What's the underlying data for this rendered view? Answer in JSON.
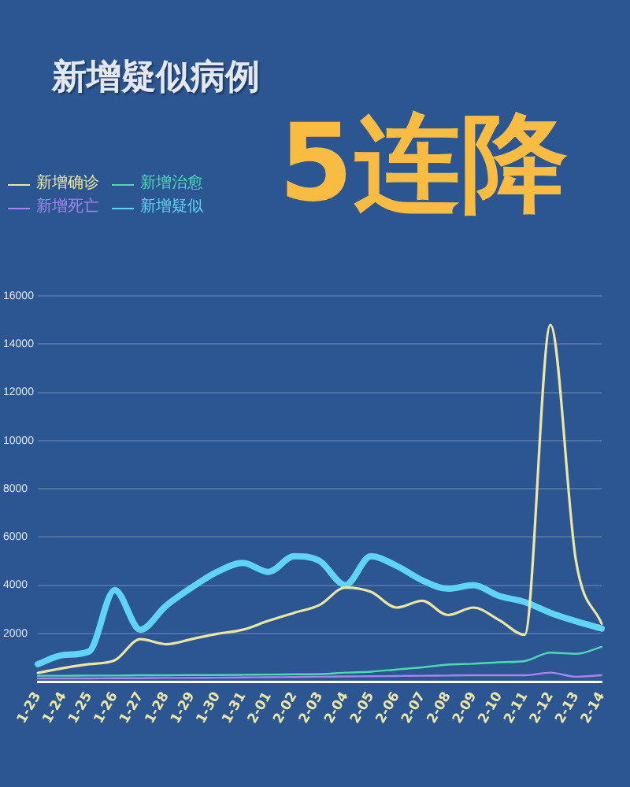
{
  "chart_data": {
    "type": "line",
    "title": "新增疑似病例",
    "subtitle": "5连降",
    "categories": [
      "1-23",
      "1-24",
      "1-25",
      "1-26",
      "1-27",
      "1-28",
      "1-29",
      "1-30",
      "1-31",
      "2-01",
      "2-02",
      "2-03",
      "2-04",
      "2-05",
      "2-06",
      "2-07",
      "2-08",
      "2-09",
      "2-10",
      "2-11",
      "2-12",
      "2-13",
      "2-14"
    ],
    "series": [
      {
        "name": "新增确诊",
        "color": "#ece6a2",
        "values": [
          360,
          560,
          720,
          880,
          1760,
          1550,
          1760,
          1980,
          2150,
          2520,
          2850,
          3180,
          3900,
          3720,
          3070,
          3350,
          2760,
          3070,
          2550,
          1940,
          14800,
          5000,
          2400
        ]
      },
      {
        "name": "新增治愈",
        "color": "#4fd8b4",
        "values": [
          240,
          240,
          250,
          250,
          260,
          260,
          270,
          270,
          280,
          290,
          300,
          310,
          370,
          410,
          500,
          590,
          700,
          740,
          800,
          850,
          1200,
          1150,
          1440
        ]
      },
      {
        "name": "新增死亡",
        "color": "#a884f0",
        "values": [
          130,
          130,
          130,
          140,
          140,
          150,
          150,
          160,
          170,
          180,
          190,
          200,
          210,
          220,
          230,
          240,
          250,
          260,
          260,
          260,
          370,
          200,
          260
        ]
      },
      {
        "name": "新增疑似",
        "color": "#5fd4f4",
        "values": [
          720,
          1100,
          1250,
          3800,
          2150,
          3140,
          3900,
          4550,
          4920,
          4550,
          5200,
          5000,
          4000,
          5200,
          4800,
          4200,
          3850,
          4000,
          3550,
          3300,
          2850,
          2500,
          2200
        ]
      }
    ],
    "ylim": [
      0,
      16000
    ],
    "yticks": [
      2000,
      4000,
      6000,
      8000,
      10000,
      12000,
      14000,
      16000
    ],
    "grid": "y",
    "legend": "top left",
    "marker": "none"
  }
}
